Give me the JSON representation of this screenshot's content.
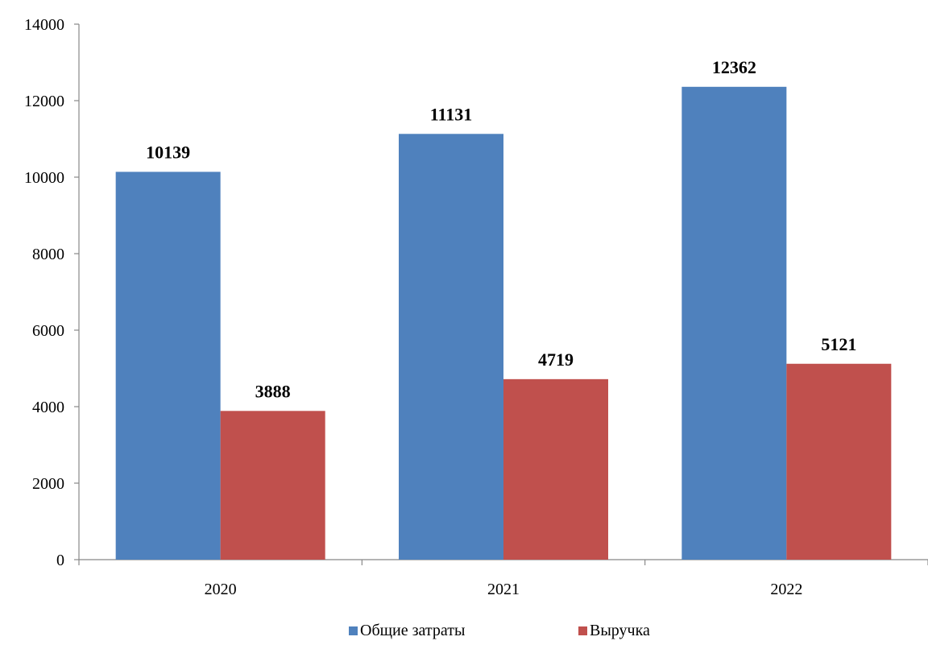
{
  "chart_data": {
    "type": "bar",
    "categories": [
      "2020",
      "2021",
      "2022"
    ],
    "series": [
      {
        "name": "Общие затраты",
        "values": [
          10139,
          11131,
          12362
        ],
        "color": "#4F81BD"
      },
      {
        "name": "Выручка",
        "values": [
          3888,
          4719,
          5121
        ],
        "color": "#C0504D"
      }
    ],
    "ylim": [
      0,
      14000
    ],
    "yticks": [
      0,
      2000,
      4000,
      6000,
      8000,
      10000,
      12000,
      14000
    ],
    "grid": false,
    "legend": "bottom",
    "data_labels": true
  }
}
